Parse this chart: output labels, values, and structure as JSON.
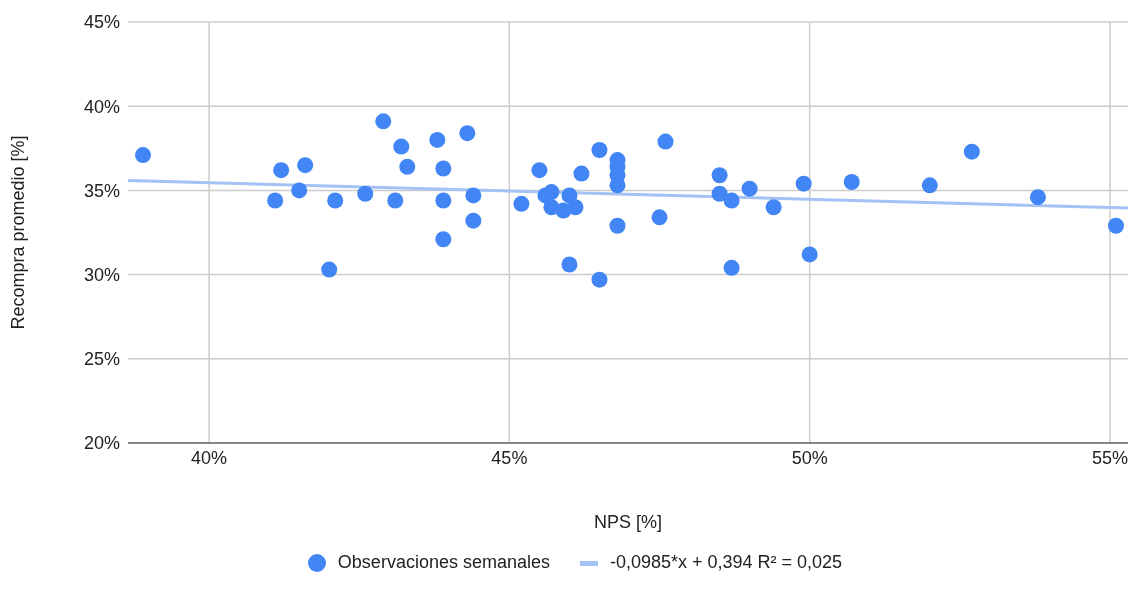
{
  "chart_data": {
    "type": "scatter",
    "xlabel": "NPS [%]",
    "ylabel": "Recompra promedio [%]",
    "xlim": [
      38.65,
      55.3
    ],
    "ylim": [
      20,
      45
    ],
    "xticks": [
      {
        "value": 40,
        "label": "40%"
      },
      {
        "value": 45,
        "label": "45%"
      },
      {
        "value": 50,
        "label": "50%"
      },
      {
        "value": 55,
        "label": "55%"
      }
    ],
    "yticks": [
      {
        "value": 20,
        "label": "20%"
      },
      {
        "value": 25,
        "label": "25%"
      },
      {
        "value": 30,
        "label": "30%"
      },
      {
        "value": 35,
        "label": "35%"
      },
      {
        "value": 40,
        "label": "40%"
      },
      {
        "value": 45,
        "label": "45%"
      }
    ],
    "grid": true,
    "legend": "bottom",
    "marker": "circle",
    "series": [
      {
        "name": "Observaciones semanales",
        "color": "#4285f4",
        "x": [
          38.9,
          41.1,
          41.2,
          41.5,
          41.6,
          42.0,
          42.1,
          42.6,
          42.9,
          43.1,
          43.2,
          43.3,
          43.8,
          43.9,
          43.9,
          43.9,
          44.3,
          44.4,
          44.4,
          45.2,
          45.5,
          45.6,
          45.7,
          45.7,
          45.9,
          46.0,
          46.1,
          46.0,
          46.2,
          46.5,
          46.5,
          46.8,
          46.8,
          46.8,
          46.8,
          46.8,
          47.5,
          47.6,
          48.5,
          48.5,
          48.7,
          48.7,
          49.0,
          49.4,
          49.9,
          50.0,
          50.7,
          52.0,
          52.7,
          53.8,
          55.1
        ],
        "values": [
          37.1,
          34.4,
          36.2,
          35.0,
          36.5,
          30.3,
          34.4,
          34.8,
          39.1,
          34.4,
          37.6,
          36.4,
          38.0,
          34.4,
          36.3,
          32.1,
          38.4,
          34.7,
          33.2,
          34.2,
          36.2,
          34.7,
          34.9,
          34.0,
          33.8,
          34.7,
          34.0,
          30.6,
          36.0,
          37.4,
          29.7,
          36.8,
          36.4,
          35.9,
          35.3,
          32.9,
          33.4,
          37.9,
          35.9,
          34.8,
          34.4,
          30.4,
          35.1,
          34.0,
          35.4,
          31.2,
          35.5,
          35.3,
          37.3,
          34.6,
          32.9
        ]
      },
      {
        "type": "line",
        "name": "-0,0985*x + 0,394 R² = 0,025",
        "color": "#a4c2f4",
        "x": [
          38.65,
          55.3
        ],
        "values": [
          35.59,
          33.95
        ],
        "marker": "none",
        "line_style": "solid"
      }
    ]
  }
}
